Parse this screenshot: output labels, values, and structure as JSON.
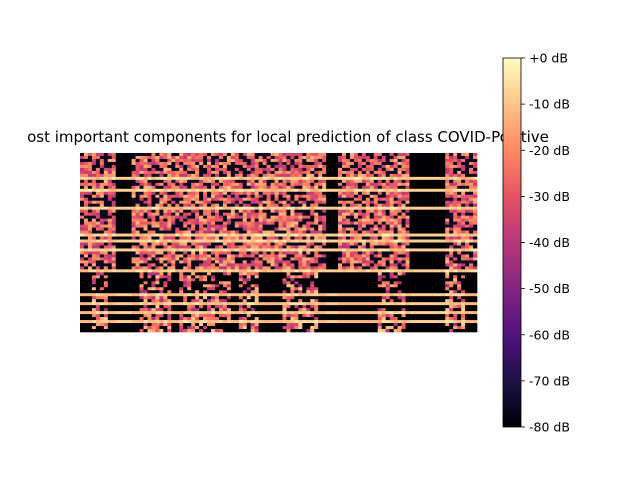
{
  "chart_data": {
    "type": "heatmap",
    "title": "ost important components for local prediction of class COVID-Positive",
    "xlabel": "",
    "ylabel": "",
    "axes_visible": false,
    "colormap": "magma",
    "colorbar": {
      "range_db": [
        -80,
        0
      ],
      "ticks": [
        {
          "value": 0,
          "label": "+0 dB"
        },
        {
          "value": -10,
          "label": "-10 dB"
        },
        {
          "value": -20,
          "label": "-20 dB"
        },
        {
          "value": -30,
          "label": "-30 dB"
        },
        {
          "value": -40,
          "label": "-40 dB"
        },
        {
          "value": -50,
          "label": "-50 dB"
        },
        {
          "value": -60,
          "label": "-60 dB"
        },
        {
          "value": -70,
          "label": "-70 dB"
        },
        {
          "value": -80,
          "label": "-80 dB"
        }
      ]
    },
    "colors": {
      "cmap_stops": [
        "#000004",
        "#1d1147",
        "#51127c",
        "#822681",
        "#b73779",
        "#e75263",
        "#fc8961",
        "#fec488",
        "#fcfdbf"
      ]
    },
    "spectrogram": {
      "time_bins": 100,
      "freq_bins": 60,
      "silent_time_segments": [
        [
          9,
          13
        ],
        [
          62,
          65
        ],
        [
          83,
          92
        ]
      ],
      "lower_band_start_row": 40,
      "lower_silent_segments": [
        [
          0,
          3
        ],
        [
          7,
          15
        ],
        [
          23,
          25
        ],
        [
          38,
          40
        ],
        [
          45,
          51
        ],
        [
          60,
          75
        ],
        [
          82,
          84
        ],
        [
          97,
          100
        ]
      ],
      "bright_rows": [
        8,
        12,
        18,
        27,
        29,
        32,
        39,
        47,
        50,
        53,
        56
      ]
    }
  }
}
